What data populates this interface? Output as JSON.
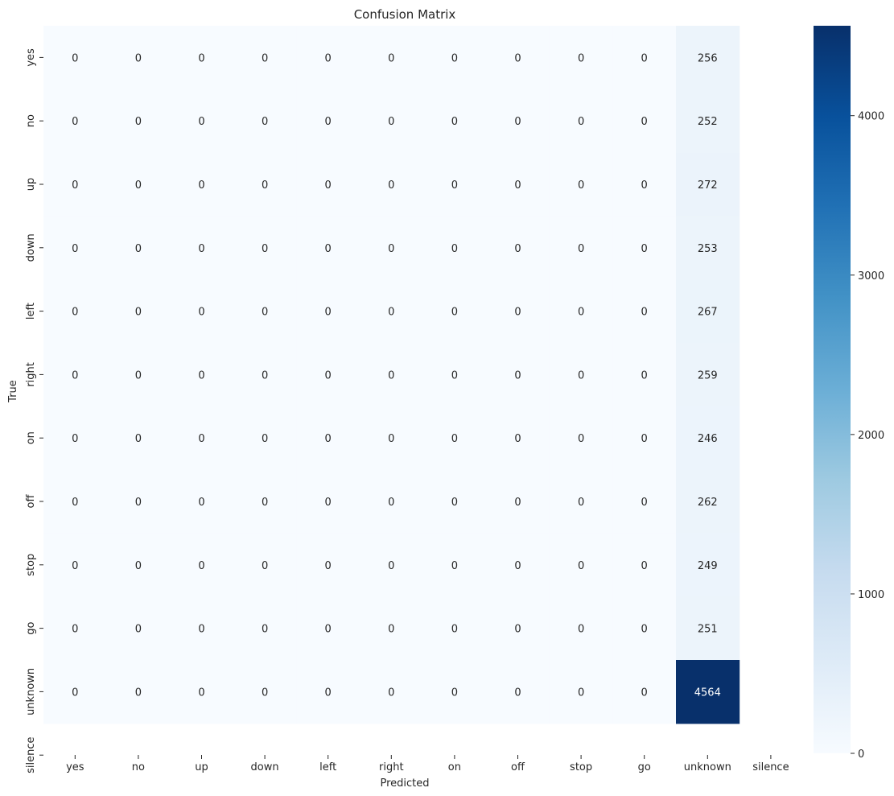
{
  "chart_data": {
    "type": "heatmap",
    "title": "Confusion Matrix",
    "xlabel": "Predicted",
    "ylabel": "True",
    "x_categories": [
      "yes",
      "no",
      "up",
      "down",
      "left",
      "right",
      "on",
      "off",
      "stop",
      "go",
      "unknown",
      "silence"
    ],
    "y_categories": [
      "yes",
      "no",
      "up",
      "down",
      "left",
      "right",
      "on",
      "off",
      "stop",
      "go",
      "unknown",
      "silence"
    ],
    "values": [
      [
        0,
        0,
        0,
        0,
        0,
        0,
        0,
        0,
        0,
        0,
        256,
        null
      ],
      [
        0,
        0,
        0,
        0,
        0,
        0,
        0,
        0,
        0,
        0,
        252,
        null
      ],
      [
        0,
        0,
        0,
        0,
        0,
        0,
        0,
        0,
        0,
        0,
        272,
        null
      ],
      [
        0,
        0,
        0,
        0,
        0,
        0,
        0,
        0,
        0,
        0,
        253,
        null
      ],
      [
        0,
        0,
        0,
        0,
        0,
        0,
        0,
        0,
        0,
        0,
        267,
        null
      ],
      [
        0,
        0,
        0,
        0,
        0,
        0,
        0,
        0,
        0,
        0,
        259,
        null
      ],
      [
        0,
        0,
        0,
        0,
        0,
        0,
        0,
        0,
        0,
        0,
        246,
        null
      ],
      [
        0,
        0,
        0,
        0,
        0,
        0,
        0,
        0,
        0,
        0,
        262,
        null
      ],
      [
        0,
        0,
        0,
        0,
        0,
        0,
        0,
        0,
        0,
        0,
        249,
        null
      ],
      [
        0,
        0,
        0,
        0,
        0,
        0,
        0,
        0,
        0,
        0,
        251,
        null
      ],
      [
        0,
        0,
        0,
        0,
        0,
        0,
        0,
        0,
        0,
        0,
        4564,
        null
      ],
      [
        null,
        null,
        null,
        null,
        null,
        null,
        null,
        null,
        null,
        null,
        null,
        null
      ]
    ],
    "colorbar": {
      "colormap": "Blues",
      "range": [
        0,
        4564
      ],
      "ticks": [
        0,
        1000,
        2000,
        3000,
        4000
      ]
    },
    "colors": {
      "low": "#f7fbff",
      "high": "#08306b"
    },
    "grid": false
  }
}
